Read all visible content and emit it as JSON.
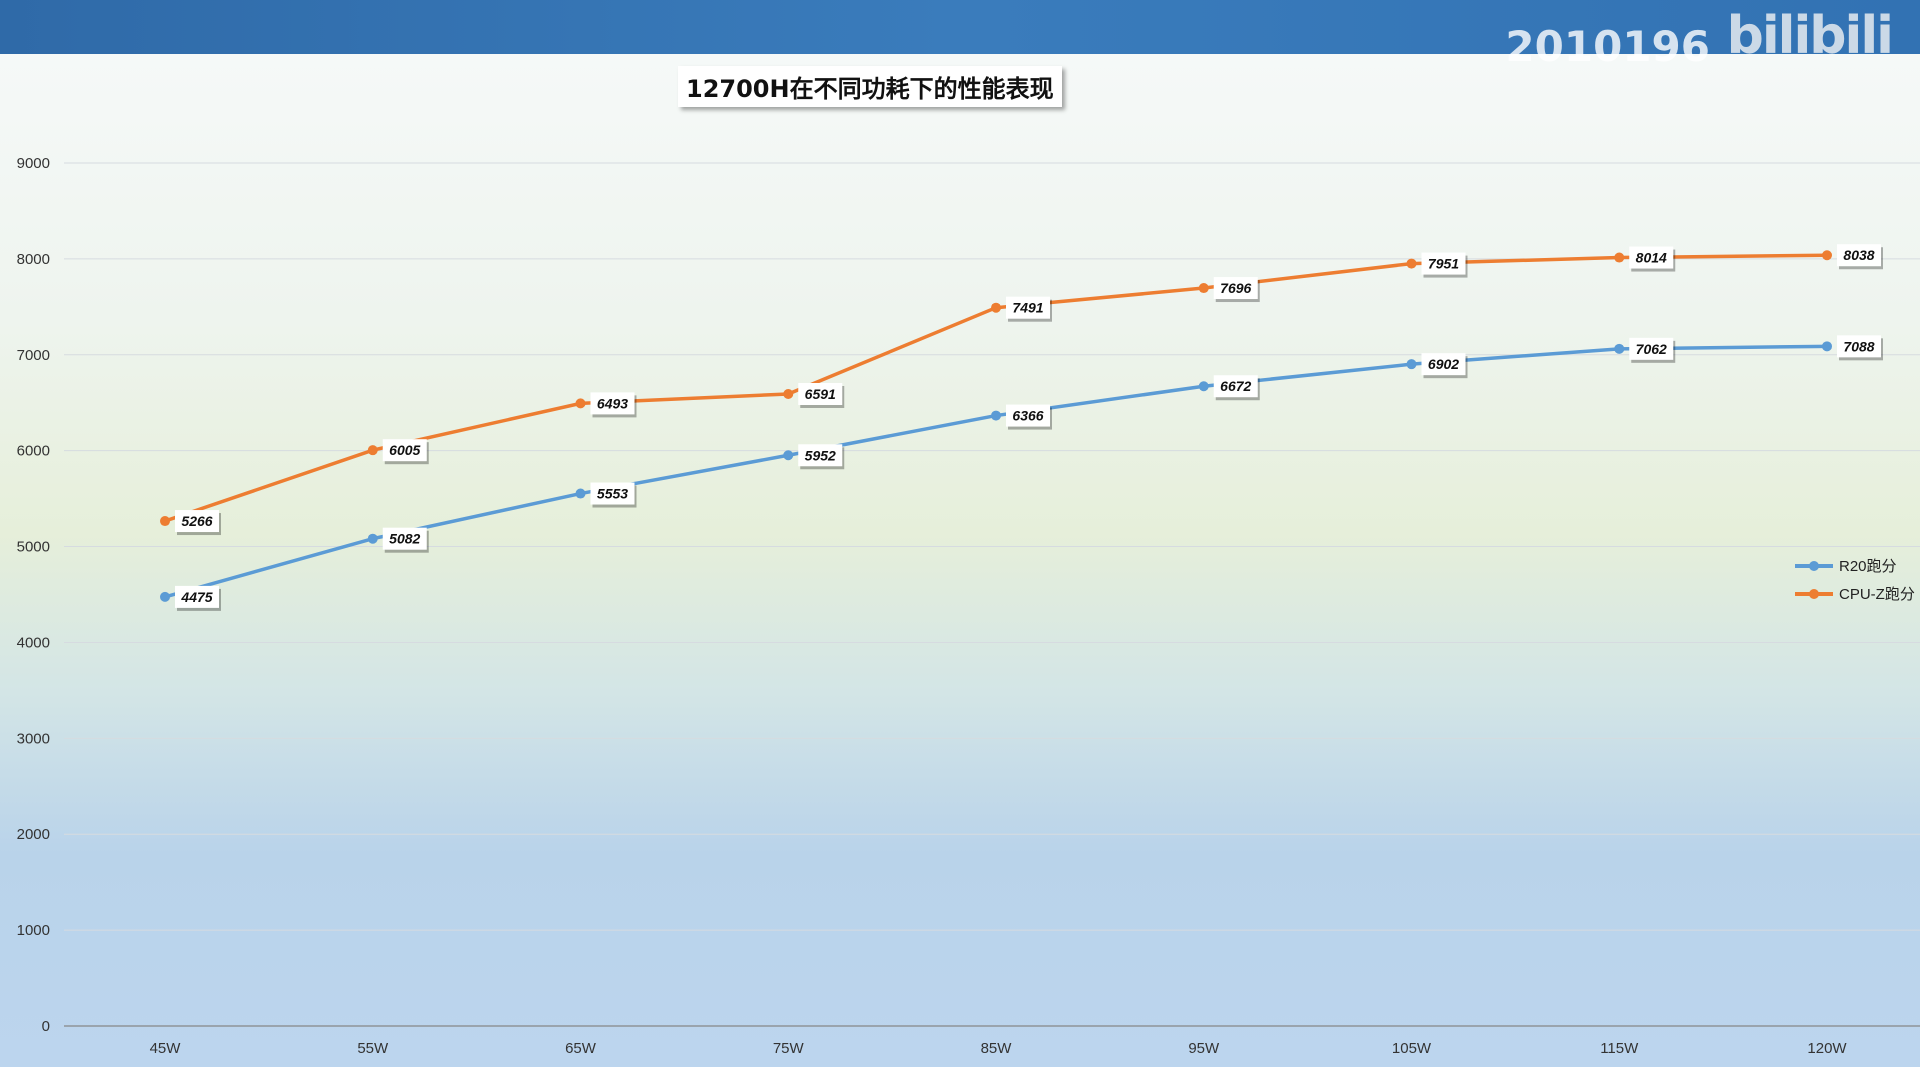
{
  "watermark": {
    "text": "2010196",
    "logo": "bilibili"
  },
  "chart_data": {
    "type": "line",
    "title": "12700H在不同功耗下的性能表现",
    "categories": [
      "45W",
      "55W",
      "65W",
      "75W",
      "85W",
      "95W",
      "105W",
      "115W",
      "120W"
    ],
    "series": [
      {
        "name": "R20跑分",
        "color": "#5b9bd5",
        "values": [
          4475,
          5082,
          5553,
          5952,
          6366,
          6672,
          6902,
          7062,
          7088
        ]
      },
      {
        "name": "CPU-Z跑分",
        "color": "#ed7d31",
        "values": [
          5266,
          6005,
          6493,
          6591,
          7491,
          7696,
          7951,
          8014,
          8038
        ]
      }
    ],
    "yticks": [
      0,
      1000,
      2000,
      3000,
      4000,
      5000,
      6000,
      7000,
      8000,
      9000
    ],
    "ylim": [
      0,
      9000
    ],
    "grid": true,
    "legend": "right",
    "xlabel": "",
    "ylabel": ""
  }
}
